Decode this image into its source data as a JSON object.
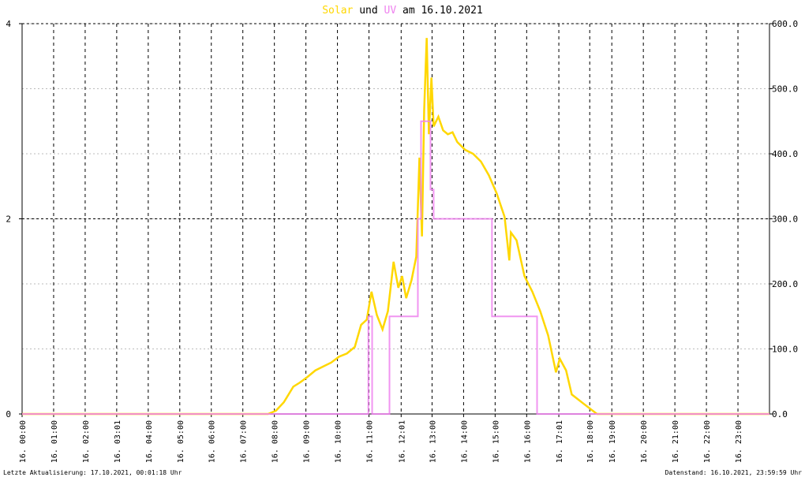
{
  "chart_data": {
    "type": "line",
    "title_parts": [
      "Solar",
      "und",
      "UV",
      "am 16.10.2021"
    ],
    "footer_left": "Letzte Aktualisierung: 17.10.2021, 00:01:18 Uhr",
    "footer_right": "Datenstand: 16.10.2021, 23:59:59 Uhr",
    "xlim": [
      0,
      23.7
    ],
    "xticks": [
      {
        "value": 0,
        "label": "16. 00:00"
      },
      {
        "value": 1,
        "label": "16. 01:00"
      },
      {
        "value": 2,
        "label": "16. 02:00"
      },
      {
        "value": 3,
        "label": "16. 03:01"
      },
      {
        "value": 4,
        "label": "16. 04:00"
      },
      {
        "value": 5,
        "label": "16. 05:00"
      },
      {
        "value": 6,
        "label": "16. 06:00"
      },
      {
        "value": 7,
        "label": "16. 07:00"
      },
      {
        "value": 8,
        "label": "16. 08:00"
      },
      {
        "value": 9,
        "label": "16. 09:00"
      },
      {
        "value": 10,
        "label": "16. 10:00"
      },
      {
        "value": 11,
        "label": "16. 11:00"
      },
      {
        "value": 12.02,
        "label": "16. 12:01"
      },
      {
        "value": 13,
        "label": "16. 13:00"
      },
      {
        "value": 14,
        "label": "16. 14:00"
      },
      {
        "value": 15,
        "label": "16. 15:00"
      },
      {
        "value": 16,
        "label": "16. 16:00"
      },
      {
        "value": 17.02,
        "label": "16. 17:01"
      },
      {
        "value": 18,
        "label": "16. 18:00"
      },
      {
        "value": 18.7,
        "label": "16. 19:00"
      },
      {
        "value": 19.7,
        "label": "16. 20:00"
      },
      {
        "value": 20.7,
        "label": "16. 21:00"
      },
      {
        "value": 21.7,
        "label": "16. 22:00"
      },
      {
        "value": 22.7,
        "label": "16. 23:00"
      }
    ],
    "ylim": [
      0,
      4
    ],
    "yticks": [
      0,
      2,
      4
    ],
    "y2lim": [
      0,
      600
    ],
    "y2ticks": [
      {
        "value": 0,
        "label": "0.0"
      },
      {
        "value": 100,
        "label": "100.0"
      },
      {
        "value": 200,
        "label": "200.0"
      },
      {
        "value": 300,
        "label": "300.0"
      },
      {
        "value": 400,
        "label": "400.0"
      },
      {
        "value": 500,
        "label": "500.0"
      },
      {
        "value": 600,
        "label": "600.0"
      }
    ],
    "series": [
      {
        "name": "Solar",
        "color": "#ffd700",
        "axis": "y2",
        "x": [
          0,
          7.8,
          8.05,
          8.3,
          8.6,
          8.8,
          9.05,
          9.3,
          9.55,
          9.8,
          10.05,
          10.3,
          10.55,
          10.75,
          10.93,
          11.08,
          11.25,
          11.43,
          11.6,
          11.78,
          11.93,
          12.05,
          12.18,
          12.35,
          12.5,
          12.6,
          12.68,
          12.75,
          12.83,
          12.9,
          12.98,
          13.05,
          13.2,
          13.35,
          13.5,
          13.65,
          13.8,
          14.05,
          14.3,
          14.55,
          14.8,
          15.05,
          15.3,
          15.45,
          15.5,
          15.68,
          15.93,
          16.18,
          16.43,
          16.68,
          16.93,
          17.05,
          17.25,
          17.43,
          17.8,
          18.23,
          23.7
        ],
        "values": [
          0,
          0,
          5,
          18,
          42,
          48,
          57,
          67,
          73,
          79,
          88,
          93,
          103,
          137,
          145,
          188,
          152,
          130,
          158,
          234,
          194,
          212,
          178,
          206,
          242,
          394,
          273,
          467,
          578,
          430,
          517,
          442,
          457,
          436,
          430,
          433,
          418,
          406,
          400,
          388,
          367,
          339,
          303,
          236,
          279,
          267,
          212,
          188,
          158,
          121,
          64,
          85,
          67,
          30,
          16,
          0,
          0
        ]
      },
      {
        "name": "UV",
        "color": "#ee82ee",
        "x": [
          0,
          10.98,
          10.98,
          11.1,
          11.1,
          11.65,
          11.65,
          12.55,
          12.55,
          12.65,
          12.65,
          12.95,
          12.95,
          13.05,
          13.05,
          14.9,
          14.9,
          16.33,
          16.33,
          23.7
        ],
        "values": [
          0,
          0,
          1,
          1,
          0,
          0,
          1,
          1,
          2,
          2,
          3,
          3,
          2.3,
          2.3,
          2,
          2,
          1,
          1,
          0,
          0
        ]
      }
    ]
  }
}
